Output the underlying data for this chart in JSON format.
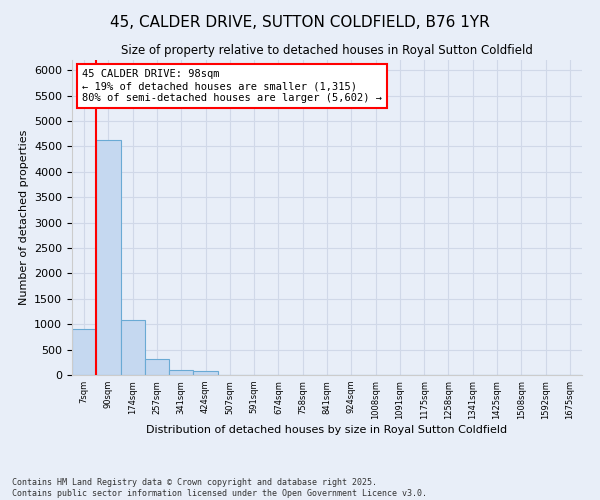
{
  "title": "45, CALDER DRIVE, SUTTON COLDFIELD, B76 1YR",
  "subtitle": "Size of property relative to detached houses in Royal Sutton Coldfield",
  "xlabel": "Distribution of detached houses by size in Royal Sutton Coldfield",
  "ylabel": "Number of detached properties",
  "footer_line1": "Contains HM Land Registry data © Crown copyright and database right 2025.",
  "footer_line2": "Contains public sector information licensed under the Open Government Licence v3.0.",
  "bin_labels": [
    "7sqm",
    "90sqm",
    "174sqm",
    "257sqm",
    "341sqm",
    "424sqm",
    "507sqm",
    "591sqm",
    "674sqm",
    "758sqm",
    "841sqm",
    "924sqm",
    "1008sqm",
    "1091sqm",
    "1175sqm",
    "1258sqm",
    "1341sqm",
    "1425sqm",
    "1508sqm",
    "1592sqm",
    "1675sqm"
  ],
  "bar_heights": [
    900,
    4620,
    1085,
    310,
    95,
    75,
    0,
    0,
    0,
    0,
    0,
    0,
    0,
    0,
    0,
    0,
    0,
    0,
    0,
    0,
    0
  ],
  "bar_color": "#c5d8f0",
  "bar_edge_color": "#6aaad4",
  "ylim": [
    0,
    6200
  ],
  "yticks": [
    0,
    500,
    1000,
    1500,
    2000,
    2500,
    3000,
    3500,
    4000,
    4500,
    5000,
    5500,
    6000
  ],
  "property_line_x": 1.0,
  "annotation_text": "45 CALDER DRIVE: 98sqm\n← 19% of detached houses are smaller (1,315)\n80% of semi-detached houses are larger (5,602) →",
  "background_color": "#e8eef8",
  "grid_color": "#d0d8e8"
}
